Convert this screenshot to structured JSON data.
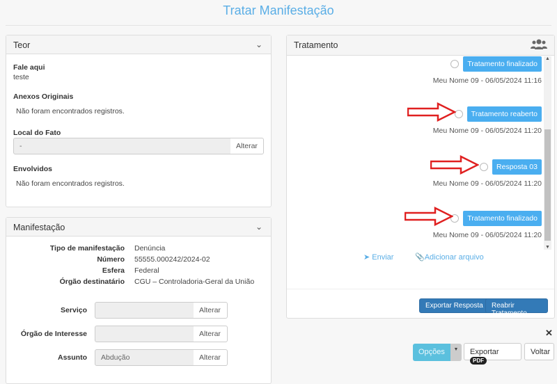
{
  "page": {
    "title": "Tratar Manifestação"
  },
  "teor": {
    "title": "Teor",
    "fale_label": "Fale aqui",
    "fale_value": "teste",
    "anexos_label": "Anexos Originais",
    "anexos_empty": "Não foram encontrados registros.",
    "local_label": "Local do Fato",
    "local_value": "-",
    "local_button": "Alterar",
    "envolvidos_label": "Envolvidos",
    "envolvidos_empty": "Não foram encontrados registros."
  },
  "manifestacao": {
    "title": "Manifestação",
    "fields": [
      {
        "label": "Tipo de manifestação",
        "value": "Denúncia"
      },
      {
        "label": "Número",
        "value": "55555.000242/2024-02"
      },
      {
        "label": "Esfera",
        "value": "Federal"
      },
      {
        "label": "Órgão destinatário",
        "value": "CGU – Controladoria-Geral da União"
      }
    ],
    "inputs": [
      {
        "label": "Serviço",
        "value": "",
        "button": "Alterar"
      },
      {
        "label": "Órgão de Interesse",
        "value": "",
        "button": "Alterar"
      },
      {
        "label": "Assunto",
        "value": "Abdução",
        "button": "Alterar"
      }
    ]
  },
  "tratamento": {
    "title": "Tratamento",
    "icon": "users-icon",
    "entries": [
      {
        "status": "Tratamento finalizado",
        "meta": "Meu Nome 09 - 06/05/2024 11:16",
        "arrow": false
      },
      {
        "status": "Tratamento reaberto",
        "meta": "Meu Nome 09 - 06/05/2024 11:20",
        "arrow": true
      },
      {
        "status": "Resposta 03",
        "meta": "Meu Nome 09 - 06/05/2024 11:20",
        "arrow": true
      },
      {
        "status": "Tratamento finalizado",
        "meta": "Meu Nome 09 - 06/05/2024 11:20",
        "arrow": true
      }
    ],
    "send_label": "Enviar",
    "attach_label": "Adicionar arquivo",
    "export_button": "Exportar Resposta",
    "reopen_button": "Reabrir Tratamento"
  },
  "footer": {
    "options_button": "Opções",
    "export_button": "Exportar",
    "pdf_badge": "PDF",
    "back_button": "Voltar"
  },
  "colors": {
    "accent": "#4aaef0",
    "primary": "#337ab7",
    "arrow": "#e02020"
  }
}
